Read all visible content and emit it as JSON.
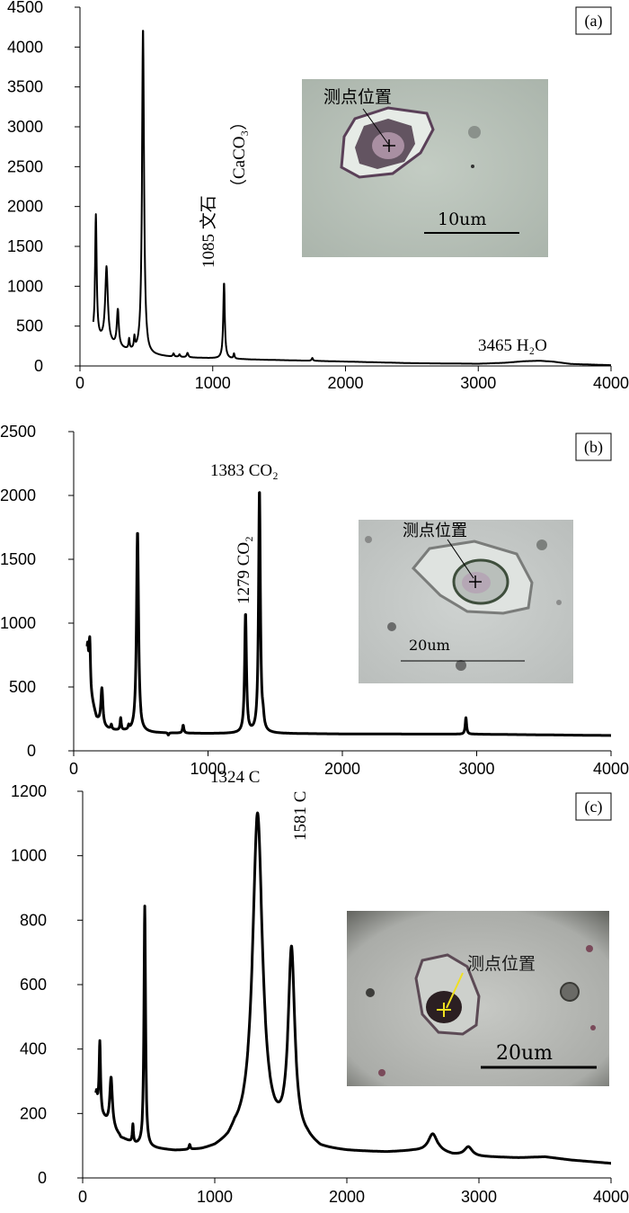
{
  "chart_data": [
    {
      "type": "line",
      "panel_label": "(a)",
      "xlim": [
        0,
        4000
      ],
      "ylim": [
        0,
        4500
      ],
      "x_ticks": [
        0,
        1000,
        2000,
        3000,
        4000
      ],
      "y_ticks": [
        0,
        500,
        1000,
        1500,
        2000,
        2500,
        3000,
        3500,
        4000,
        4500
      ],
      "baseline": [
        [
          100,
          370
        ],
        [
          150,
          320
        ],
        [
          260,
          240
        ],
        [
          330,
          200
        ],
        [
          420,
          160
        ],
        [
          520,
          130
        ],
        [
          700,
          110
        ],
        [
          900,
          100
        ],
        [
          1100,
          90
        ],
        [
          1300,
          80
        ],
        [
          1600,
          70
        ],
        [
          2000,
          55
        ],
        [
          2500,
          35
        ],
        [
          3000,
          28
        ],
        [
          3200,
          40
        ],
        [
          3350,
          60
        ],
        [
          3465,
          65
        ],
        [
          3560,
          55
        ],
        [
          3700,
          25
        ],
        [
          4000,
          10
        ]
      ],
      "peaks": [
        {
          "x": 120,
          "y": 1880,
          "w": 7
        },
        {
          "x": 200,
          "y": 1230,
          "w": 12
        },
        {
          "x": 285,
          "y": 690,
          "w": 9
        },
        {
          "x": 370,
          "y": 310,
          "w": 5
        },
        {
          "x": 410,
          "y": 310,
          "w": 5
        },
        {
          "x": 475,
          "y": 4250,
          "w": 9
        },
        {
          "x": 705,
          "y": 150,
          "w": 6
        },
        {
          "x": 750,
          "y": 140,
          "w": 6
        },
        {
          "x": 810,
          "y": 160,
          "w": 7
        },
        {
          "x": 1085,
          "y": 1050,
          "w": 7
        },
        {
          "x": 1160,
          "y": 150,
          "w": 5
        },
        {
          "x": 1750,
          "y": 100,
          "w": 6
        }
      ],
      "annotations": [
        {
          "text": "1085 文石",
          "sub": "（CaCO₃）",
          "rotated": true
        },
        {
          "text": "3465 H₂O",
          "rotated": false
        }
      ],
      "micrograph": {
        "label": "测点位置",
        "scale": "10um",
        "marker_color": "#000000"
      }
    },
    {
      "type": "line",
      "panel_label": "(b)",
      "xlim": [
        0,
        4000
      ],
      "ylim": [
        0,
        2500
      ],
      "x_ticks": [
        0,
        1000,
        2000,
        3000,
        4000
      ],
      "y_ticks": [
        0,
        500,
        1000,
        1500,
        2000,
        2500
      ],
      "baseline": [
        [
          100,
          700
        ],
        [
          130,
          420
        ],
        [
          170,
          250
        ],
        [
          220,
          180
        ],
        [
          300,
          160
        ],
        [
          400,
          150
        ],
        [
          600,
          140
        ],
        [
          1000,
          135
        ],
        [
          1500,
          135
        ],
        [
          2000,
          132
        ],
        [
          3000,
          130
        ],
        [
          4000,
          120
        ]
      ],
      "peaks": [
        {
          "x": 105,
          "y": 800,
          "w": 6
        },
        {
          "x": 120,
          "y": 870,
          "w": 6
        },
        {
          "x": 210,
          "y": 490,
          "w": 9
        },
        {
          "x": 280,
          "y": 200,
          "w": 5
        },
        {
          "x": 350,
          "y": 250,
          "w": 5
        },
        {
          "x": 410,
          "y": 180,
          "w": 5
        },
        {
          "x": 475,
          "y": 1720,
          "w": 9
        },
        {
          "x": 705,
          "y": 120,
          "w": 5
        },
        {
          "x": 815,
          "y": 200,
          "w": 6
        },
        {
          "x": 1279,
          "y": 1070,
          "w": 8
        },
        {
          "x": 1383,
          "y": 2040,
          "w": 8
        },
        {
          "x": 1410,
          "y": 210,
          "w": 8
        },
        {
          "x": 2920,
          "y": 260,
          "w": 6
        }
      ],
      "annotations": [
        {
          "text": "1383 CO₂",
          "rotated": false
        },
        {
          "text": "1279 CO₂",
          "rotated": true
        }
      ],
      "micrograph": {
        "label": "测点位置",
        "scale": "20um",
        "marker_color": "#000000"
      }
    },
    {
      "type": "line",
      "panel_label": "(c)",
      "xlim": [
        0,
        4000
      ],
      "ylim": [
        0,
        1200
      ],
      "x_ticks": [
        0,
        1000,
        2000,
        3000,
        4000
      ],
      "y_ticks": [
        0,
        200,
        400,
        600,
        800,
        1000,
        1200
      ],
      "baseline": [
        [
          100,
          240
        ],
        [
          150,
          190
        ],
        [
          200,
          160
        ],
        [
          300,
          120
        ],
        [
          400,
          100
        ],
        [
          500,
          90
        ],
        [
          700,
          80
        ],
        [
          900,
          80
        ],
        [
          1000,
          85
        ],
        [
          1100,
          100
        ],
        [
          1150,
          120
        ],
        [
          1700,
          105
        ],
        [
          1800,
          85
        ],
        [
          2000,
          80
        ],
        [
          2300,
          78
        ],
        [
          2500,
          82
        ],
        [
          2700,
          80
        ],
        [
          2800,
          70
        ],
        [
          3000,
          65
        ],
        [
          3300,
          62
        ],
        [
          3500,
          65
        ],
        [
          3700,
          55
        ],
        [
          4000,
          45
        ]
      ],
      "peaks": [
        {
          "x": 105,
          "y": 260,
          "w": 5
        },
        {
          "x": 130,
          "y": 420,
          "w": 6
        },
        {
          "x": 215,
          "y": 310,
          "w": 12
        },
        {
          "x": 290,
          "y": 120,
          "w": 8
        },
        {
          "x": 380,
          "y": 160,
          "w": 5
        },
        {
          "x": 470,
          "y": 840,
          "w": 7
        },
        {
          "x": 810,
          "y": 95,
          "w": 6
        },
        {
          "x": 1324,
          "y": 1125,
          "w": 45
        },
        {
          "x": 1581,
          "y": 690,
          "w": 30
        },
        {
          "x": 2650,
          "y": 135,
          "w": 40
        },
        {
          "x": 2920,
          "y": 95,
          "w": 35
        }
      ],
      "annotations": [
        {
          "text": "1324 C",
          "rotated": false
        },
        {
          "text": "1581 C",
          "rotated": true
        }
      ],
      "micrograph": {
        "label": "测点位置",
        "scale": "20um",
        "marker_color": "#f0e020"
      }
    }
  ]
}
